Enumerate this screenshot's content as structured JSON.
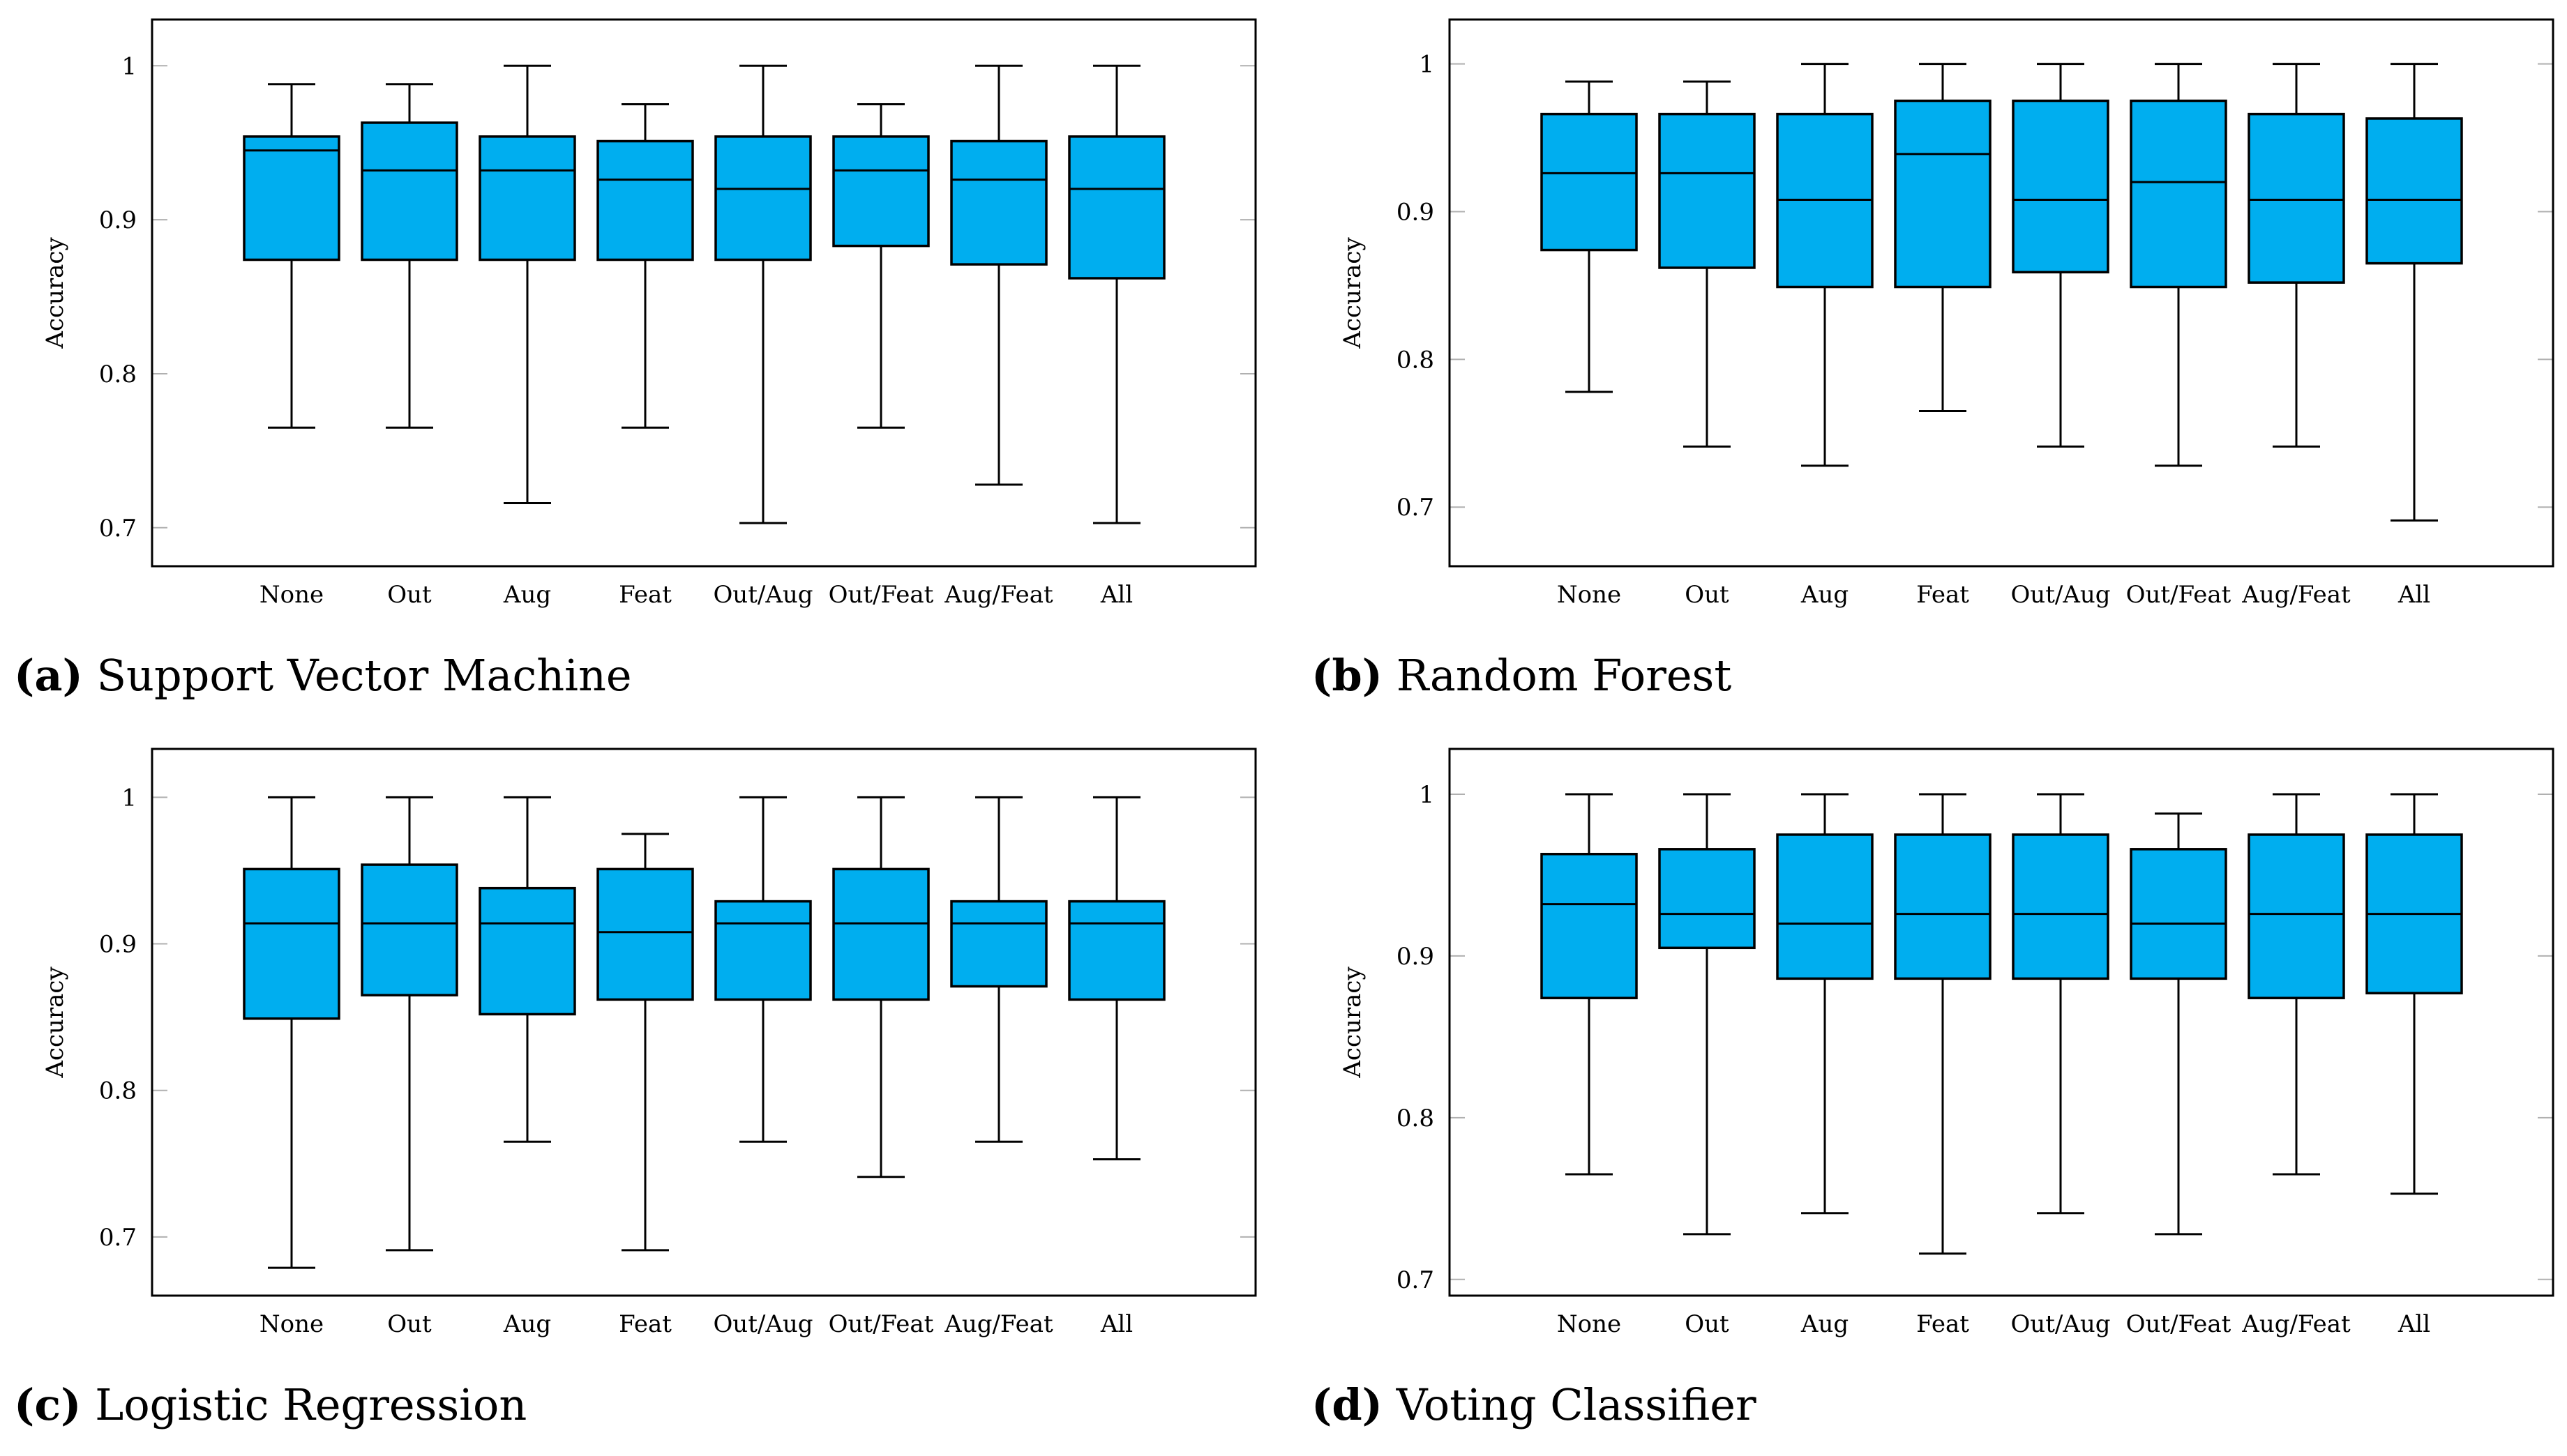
{
  "colors": {
    "box_fill": "#00AEEF",
    "stroke": "#000000",
    "grid": "#b0b0b0"
  },
  "chart_data": [
    {
      "type": "box",
      "id": "a",
      "label": "(a)",
      "title": "Support Vector Machine",
      "ylabel": "Accuracy",
      "ylim": [
        0.675,
        1.03
      ],
      "yticks": [
        0.7,
        0.8,
        0.9,
        1
      ],
      "ytick_labels": [
        "0.7",
        "0.8",
        "0.9",
        "1"
      ],
      "categories": [
        "None",
        "Out",
        "Aug",
        "Feat",
        "Out/Aug",
        "Out/Feat",
        "Aug/Feat",
        "All"
      ],
      "boxes": [
        {
          "min": 0.765,
          "q1": 0.874,
          "median": 0.945,
          "q3": 0.954,
          "max": 0.988
        },
        {
          "min": 0.765,
          "q1": 0.874,
          "median": 0.932,
          "q3": 0.963,
          "max": 0.988
        },
        {
          "min": 0.716,
          "q1": 0.874,
          "median": 0.932,
          "q3": 0.954,
          "max": 1.0
        },
        {
          "min": 0.765,
          "q1": 0.874,
          "median": 0.926,
          "q3": 0.951,
          "max": 0.975
        },
        {
          "min": 0.703,
          "q1": 0.874,
          "median": 0.92,
          "q3": 0.954,
          "max": 1.0
        },
        {
          "min": 0.765,
          "q1": 0.883,
          "median": 0.932,
          "q3": 0.954,
          "max": 0.975
        },
        {
          "min": 0.728,
          "q1": 0.871,
          "median": 0.926,
          "q3": 0.951,
          "max": 1.0
        },
        {
          "min": 0.703,
          "q1": 0.862,
          "median": 0.92,
          "q3": 0.954,
          "max": 1.0
        }
      ]
    },
    {
      "type": "box",
      "id": "b",
      "label": "(b)",
      "title": "Random Forest",
      "ylabel": "Accuracy",
      "ylim": [
        0.66,
        1.03
      ],
      "yticks": [
        0.7,
        0.8,
        0.9,
        1
      ],
      "ytick_labels": [
        "0.7",
        "0.8",
        "0.9",
        "1"
      ],
      "categories": [
        "None",
        "Out",
        "Aug",
        "Feat",
        "Out/Aug",
        "Out/Feat",
        "Aug/Feat",
        "All"
      ],
      "boxes": [
        {
          "min": 0.778,
          "q1": 0.874,
          "median": 0.926,
          "q3": 0.966,
          "max": 0.988
        },
        {
          "min": 0.741,
          "q1": 0.862,
          "median": 0.926,
          "q3": 0.966,
          "max": 0.988
        },
        {
          "min": 0.728,
          "q1": 0.849,
          "median": 0.908,
          "q3": 0.966,
          "max": 1.0
        },
        {
          "min": 0.765,
          "q1": 0.849,
          "median": 0.939,
          "q3": 0.975,
          "max": 1.0
        },
        {
          "min": 0.741,
          "q1": 0.859,
          "median": 0.908,
          "q3": 0.975,
          "max": 1.0
        },
        {
          "min": 0.728,
          "q1": 0.849,
          "median": 0.92,
          "q3": 0.975,
          "max": 1.0
        },
        {
          "min": 0.741,
          "q1": 0.852,
          "median": 0.908,
          "q3": 0.966,
          "max": 1.0
        },
        {
          "min": 0.691,
          "q1": 0.865,
          "median": 0.908,
          "q3": 0.963,
          "max": 1.0
        }
      ]
    },
    {
      "type": "box",
      "id": "c",
      "label": "(c)",
      "title": "Logistic Regression",
      "ylabel": "Accuracy",
      "ylim": [
        0.66,
        1.033
      ],
      "yticks": [
        0.7,
        0.8,
        0.9,
        1
      ],
      "ytick_labels": [
        "0.7",
        "0.8",
        "0.9",
        "1"
      ],
      "categories": [
        "None",
        "Out",
        "Aug",
        "Feat",
        "Out/Aug",
        "Out/Feat",
        "Aug/Feat",
        "All"
      ],
      "boxes": [
        {
          "min": 0.679,
          "q1": 0.849,
          "median": 0.914,
          "q3": 0.951,
          "max": 1.0
        },
        {
          "min": 0.691,
          "q1": 0.865,
          "median": 0.914,
          "q3": 0.954,
          "max": 1.0
        },
        {
          "min": 0.765,
          "q1": 0.852,
          "median": 0.914,
          "q3": 0.938,
          "max": 1.0
        },
        {
          "min": 0.691,
          "q1": 0.862,
          "median": 0.908,
          "q3": 0.951,
          "max": 0.975
        },
        {
          "min": 0.765,
          "q1": 0.862,
          "median": 0.914,
          "q3": 0.929,
          "max": 1.0
        },
        {
          "min": 0.741,
          "q1": 0.862,
          "median": 0.914,
          "q3": 0.951,
          "max": 1.0
        },
        {
          "min": 0.765,
          "q1": 0.871,
          "median": 0.914,
          "q3": 0.929,
          "max": 1.0
        },
        {
          "min": 0.753,
          "q1": 0.862,
          "median": 0.914,
          "q3": 0.929,
          "max": 1.0
        }
      ]
    },
    {
      "type": "box",
      "id": "d",
      "label": "(d)",
      "title": "Voting Classifier",
      "ylabel": "Accuracy",
      "ylim": [
        0.69,
        1.028
      ],
      "yticks": [
        0.7,
        0.8,
        0.9,
        1
      ],
      "ytick_labels": [
        "0.7",
        "0.8",
        "0.9",
        "1"
      ],
      "categories": [
        "None",
        "Out",
        "Aug",
        "Feat",
        "Out/Aug",
        "Out/Feat",
        "Aug/Feat",
        "All"
      ],
      "boxes": [
        {
          "min": 0.765,
          "q1": 0.874,
          "median": 0.932,
          "q3": 0.963,
          "max": 1.0
        },
        {
          "min": 0.728,
          "q1": 0.905,
          "median": 0.926,
          "q3": 0.966,
          "max": 1.0
        },
        {
          "min": 0.741,
          "q1": 0.886,
          "median": 0.92,
          "q3": 0.975,
          "max": 1.0
        },
        {
          "min": 0.716,
          "q1": 0.886,
          "median": 0.926,
          "q3": 0.975,
          "max": 1.0
        },
        {
          "min": 0.741,
          "q1": 0.886,
          "median": 0.926,
          "q3": 0.975,
          "max": 1.0
        },
        {
          "min": 0.728,
          "q1": 0.886,
          "median": 0.92,
          "q3": 0.966,
          "max": 0.988
        },
        {
          "min": 0.765,
          "q1": 0.874,
          "median": 0.926,
          "q3": 0.975,
          "max": 1.0
        },
        {
          "min": 0.753,
          "q1": 0.877,
          "median": 0.926,
          "q3": 0.975,
          "max": 1.0
        }
      ]
    }
  ]
}
